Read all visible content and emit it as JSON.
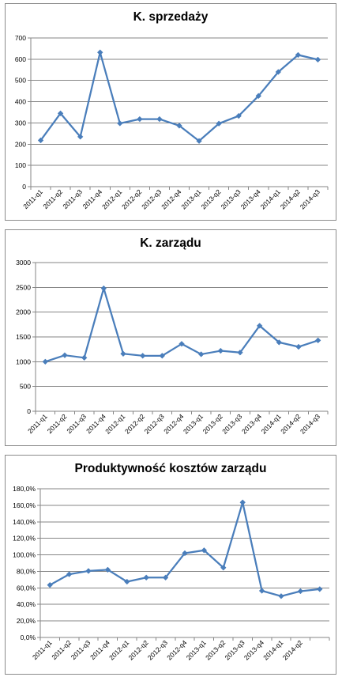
{
  "chart_data": [
    {
      "type": "line",
      "title": "K. sprzedaży",
      "categories": [
        "2011-q1",
        "2011-q2",
        "2011-q3",
        "2011-q4",
        "2012-q1",
        "2012-q2",
        "2012-q3",
        "2012-q4",
        "2013-q1",
        "2013-q2",
        "2013-q3",
        "2013-q4",
        "2014-q1",
        "2014-q2",
        "2014-q3"
      ],
      "values": [
        218,
        345,
        235,
        632,
        298,
        318,
        318,
        287,
        215,
        297,
        333,
        427,
        540,
        620,
        598
      ],
      "ylim": [
        0,
        700
      ],
      "yticks": [
        0,
        100,
        200,
        300,
        400,
        500,
        600,
        700
      ],
      "ytick_labels": [
        "0",
        "100",
        "200",
        "300",
        "400",
        "500",
        "600",
        "700"
      ],
      "grid": true,
      "legend": "none",
      "color": "#4a7ebb"
    },
    {
      "type": "line",
      "title": "K. zarządu",
      "categories": [
        "2011-q1",
        "2011-q2",
        "2011-q3",
        "2011-q4",
        "2012-q1",
        "2012-q2",
        "2012-q3",
        "2012-q4",
        "2013-q1",
        "2013-q2",
        "2013-q3",
        "2013-q4",
        "2014-q1",
        "2014-q2",
        "2014-q3"
      ],
      "values": [
        1000,
        1130,
        1080,
        2480,
        1160,
        1120,
        1120,
        1360,
        1150,
        1220,
        1185,
        1725,
        1390,
        1300,
        1430
      ],
      "ylim": [
        0,
        3000
      ],
      "yticks": [
        0,
        500,
        1000,
        1500,
        2000,
        2500,
        3000
      ],
      "ytick_labels": [
        "0",
        "500",
        "1000",
        "1500",
        "2000",
        "2500",
        "3000"
      ],
      "grid": true,
      "legend": "none",
      "color": "#4a7ebb"
    },
    {
      "type": "line",
      "title": "Produktywność kosztów zarządu",
      "categories": [
        "2011-q1",
        "2011-q2",
        "2011-q3",
        "2011-q4",
        "2012-q1",
        "2012-q2",
        "2012-q3",
        "2012-q4",
        "2013-q1",
        "2013-q2",
        "2013-q3",
        "2013-q4",
        "2014-q1",
        "2014-q2",
        ""
      ],
      "values": [
        63.5,
        76.5,
        80.5,
        82,
        67.5,
        72.5,
        72.5,
        102,
        105.5,
        84.5,
        163.5,
        56.5,
        50,
        56,
        58.5
      ],
      "ylim": [
        0,
        180
      ],
      "yticks": [
        0,
        20,
        40,
        60,
        80,
        100,
        120,
        140,
        160,
        180
      ],
      "ytick_labels": [
        "0,0%",
        "20,0%",
        "40,0%",
        "60,0%",
        "80,0%",
        "100,0%",
        "120,0%",
        "140,0%",
        "160,0%",
        "180,0%"
      ],
      "grid": true,
      "legend": "none",
      "color": "#4a7ebb"
    }
  ]
}
